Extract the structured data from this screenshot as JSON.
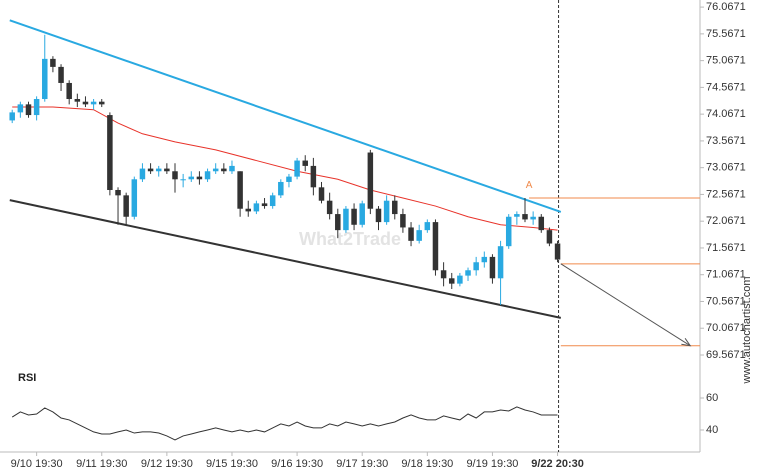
{
  "chart_data": {
    "type": "candlestick",
    "categories": [
      null,
      null,
      null,
      "9/10 19:30",
      null,
      null,
      null,
      null,
      null,
      null,
      null,
      "9/11 19:30",
      null,
      null,
      null,
      null,
      null,
      null,
      null,
      "9/12 19:30",
      null,
      null,
      null,
      null,
      null,
      null,
      null,
      "9/15 19:30",
      null,
      null,
      null,
      null,
      null,
      null,
      null,
      "9/16 19:30",
      null,
      null,
      null,
      null,
      null,
      null,
      null,
      "9/17 19:30",
      null,
      null,
      null,
      null,
      null,
      null,
      null,
      "9/18 19:30",
      null,
      null,
      null,
      null,
      null,
      null,
      null,
      "9/19 19:30",
      null,
      null,
      null,
      null,
      null,
      null,
      null,
      "9/22 20:30"
    ],
    "open": [
      73.95,
      74.1,
      74.25,
      74.05,
      74.35,
      75.1,
      74.95,
      74.65,
      74.35,
      74.3,
      74.25,
      74.3,
      74.05,
      72.65,
      72.55,
      72.15,
      72.85,
      73.05,
      73.0,
      73.05,
      73.0,
      72.85,
      72.85,
      72.9,
      72.85,
      73.0,
      73.05,
      73.0,
      73.0,
      72.3,
      72.25,
      72.4,
      72.35,
      72.55,
      72.8,
      72.9,
      73.2,
      73.1,
      72.7,
      72.45,
      72.2,
      71.9,
      72.3,
      72.0,
      73.35,
      72.3,
      72.05,
      72.45,
      72.2,
      71.95,
      71.7,
      71.9,
      72.05,
      71.15,
      71.0,
      70.9,
      71.05,
      71.15,
      71.3,
      71.4,
      71.0,
      71.6,
      72.15,
      72.2,
      72.1,
      72.15,
      71.9,
      71.65
    ],
    "high": [
      74.15,
      74.3,
      74.3,
      74.4,
      75.55,
      75.15,
      75.0,
      74.7,
      74.45,
      74.4,
      74.35,
      74.35,
      74.1,
      72.7,
      72.6,
      72.9,
      73.15,
      73.15,
      73.1,
      73.15,
      73.15,
      72.95,
      73.0,
      73.0,
      73.05,
      73.15,
      73.15,
      73.2,
      73.0,
      72.45,
      72.45,
      72.5,
      72.6,
      72.85,
      72.95,
      73.25,
      73.3,
      73.25,
      72.8,
      72.6,
      72.3,
      72.35,
      72.4,
      72.45,
      73.4,
      72.35,
      72.55,
      72.55,
      72.3,
      72.05,
      72.0,
      72.1,
      72.1,
      71.3,
      71.1,
      71.1,
      71.2,
      71.4,
      71.5,
      71.45,
      71.7,
      72.2,
      72.25,
      72.5,
      72.25,
      72.2,
      71.95,
      71.7
    ],
    "low": [
      73.9,
      74.0,
      74.0,
      73.95,
      74.3,
      74.85,
      74.5,
      74.25,
      74.2,
      74.2,
      74.15,
      74.2,
      72.55,
      72.0,
      72.0,
      72.1,
      72.8,
      72.95,
      72.9,
      72.95,
      72.6,
      72.7,
      72.8,
      72.75,
      72.8,
      72.95,
      72.95,
      72.95,
      72.15,
      72.15,
      72.2,
      72.3,
      72.3,
      72.5,
      72.7,
      72.85,
      73.0,
      72.55,
      72.4,
      72.1,
      71.75,
      71.85,
      71.9,
      71.95,
      72.2,
      71.9,
      72.0,
      72.1,
      71.85,
      71.6,
      71.65,
      71.85,
      71.05,
      70.85,
      70.8,
      70.85,
      70.95,
      71.05,
      71.2,
      70.9,
      70.5,
      71.55,
      72.0,
      72.05,
      72.0,
      71.85,
      71.6,
      71.3
    ],
    "close": [
      74.1,
      74.25,
      74.05,
      74.35,
      75.1,
      74.95,
      74.65,
      74.35,
      74.3,
      74.25,
      74.3,
      74.25,
      72.65,
      72.55,
      72.15,
      72.85,
      73.05,
      73.0,
      73.05,
      73.0,
      72.85,
      72.85,
      72.9,
      72.85,
      73.0,
      73.05,
      73.0,
      73.1,
      72.3,
      72.25,
      72.4,
      72.35,
      72.55,
      72.8,
      72.9,
      73.2,
      73.1,
      72.7,
      72.45,
      72.2,
      71.9,
      72.3,
      72.0,
      72.4,
      72.3,
      72.05,
      72.45,
      72.2,
      71.95,
      71.7,
      71.9,
      72.05,
      71.15,
      71.0,
      70.9,
      71.05,
      71.15,
      71.3,
      71.4,
      71.0,
      71.6,
      72.15,
      72.2,
      72.1,
      72.15,
      71.9,
      71.65,
      71.35
    ],
    "up_color": "#29a9e1",
    "down_color": "#333333",
    "xlim": [
      -1.5,
      84.5
    ],
    "ylim": [
      69.38,
      76.2
    ],
    "yticks": [
      76.0671,
      75.5671,
      75.0671,
      74.5671,
      74.0671,
      73.5671,
      73.0671,
      72.5671,
      72.0671,
      71.5671,
      71.0671,
      70.5671,
      70.0671,
      69.5671
    ],
    "moving_average": {
      "color": "#e8332a",
      "x": [
        0,
        5,
        10,
        13,
        16,
        20,
        25,
        30,
        35,
        40,
        44,
        48,
        52,
        56,
        60,
        64,
        67
      ],
      "values": [
        74.2,
        74.2,
        74.15,
        73.9,
        73.7,
        73.55,
        73.4,
        73.2,
        73.0,
        72.85,
        72.65,
        72.5,
        72.35,
        72.15,
        72.0,
        71.95,
        71.9
      ]
    },
    "trend_lines": [
      {
        "color": "#29a9e1",
        "x": [
          -0.3,
          67.4
        ],
        "values": [
          75.82,
          72.24
        ]
      },
      {
        "color": "#333333",
        "x": [
          -0.3,
          67.4
        ],
        "values": [
          72.46,
          70.26
        ]
      }
    ],
    "levels": [
      {
        "color": "#f08a4b",
        "x": [
          63.5,
          84.5
        ],
        "value": 72.5
      },
      {
        "color": "#f08a4b",
        "x": [
          67.4,
          84.5
        ],
        "value": 71.27
      },
      {
        "color": "#f08a4b",
        "x": [
          67.4,
          84.5
        ],
        "value": 69.74
      }
    ],
    "forecast_arrow": {
      "color": "#555555",
      "x": [
        67.4,
        83.3
      ],
      "values": [
        71.27,
        69.74
      ]
    },
    "annotation": {
      "text": "A",
      "x": 63.5,
      "value": 72.62,
      "color": "#f08a4b"
    },
    "watermark": "What2Trade",
    "side_text": "www.autochartist.com",
    "rsi": {
      "label": "RSI",
      "color": "#333333",
      "ylim": [
        27.5,
        77.5
      ],
      "yticks": [
        60,
        40
      ],
      "values": [
        48.1,
        51.3,
        49.4,
        50,
        53.8,
        51.3,
        47.5,
        46.3,
        43.8,
        41.3,
        38.8,
        37.5,
        37.5,
        38.8,
        40,
        38.1,
        38.8,
        38.8,
        38.1,
        36.3,
        33.8,
        36.3,
        37.5,
        38.8,
        40,
        41.3,
        40,
        38.8,
        40,
        38.8,
        40,
        38.8,
        41.3,
        43.8,
        42.5,
        45,
        42.5,
        41.3,
        41.3,
        43.8,
        42.5,
        45,
        43.8,
        42.5,
        43.8,
        42.5,
        43.8,
        45,
        47.5,
        49.4,
        47.5,
        46.3,
        46.3,
        48.8,
        47.5,
        46.3,
        50,
        47.5,
        51.3,
        51.3,
        52.5,
        51.9,
        54.4,
        52.5,
        51.3,
        49.4,
        49.4,
        49.4
      ]
    }
  }
}
